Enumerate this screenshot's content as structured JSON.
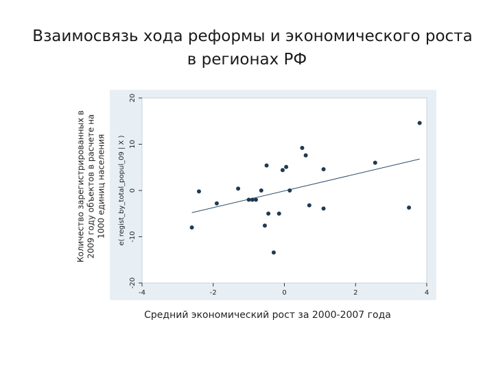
{
  "slide": {
    "title_line1": "Взаимосвязь хода реформы и экономического роста",
    "title_line2": "в регионах РФ",
    "ylabel_lines": [
      "Количество зарегистрированных в",
      "2009 году объектов в расчете на",
      "1000 единиц населения"
    ],
    "xlabel": "Средний экономический рост за 2000-2007 года"
  },
  "chart_data": {
    "type": "scatter",
    "title": "",
    "xlabel": "",
    "ylabel": "e( regist_by_total_popul_09 | X )",
    "xlim": [
      -4,
      4
    ],
    "ylim": [
      -20,
      20
    ],
    "xticks": [
      -4,
      -2,
      0,
      2,
      4
    ],
    "yticks": [
      -20,
      -10,
      0,
      10,
      20
    ],
    "grid": false,
    "points": [
      {
        "x": -2.6,
        "y": -8.0
      },
      {
        "x": -2.4,
        "y": -0.2
      },
      {
        "x": -1.9,
        "y": -2.8
      },
      {
        "x": -1.3,
        "y": 0.4
      },
      {
        "x": -1.0,
        "y": -2.0
      },
      {
        "x": -0.9,
        "y": -2.0
      },
      {
        "x": -0.8,
        "y": -2.0
      },
      {
        "x": -0.65,
        "y": 0.0
      },
      {
        "x": -0.55,
        "y": -7.6
      },
      {
        "x": -0.5,
        "y": 5.4
      },
      {
        "x": -0.45,
        "y": -5.0
      },
      {
        "x": -0.3,
        "y": -13.4
      },
      {
        "x": -0.15,
        "y": -5.0
      },
      {
        "x": -0.05,
        "y": 4.4
      },
      {
        "x": 0.05,
        "y": 5.1
      },
      {
        "x": 0.15,
        "y": 0.0
      },
      {
        "x": 0.5,
        "y": 9.2
      },
      {
        "x": 0.6,
        "y": 7.6
      },
      {
        "x": 0.7,
        "y": -3.2
      },
      {
        "x": 1.1,
        "y": 4.6
      },
      {
        "x": 1.1,
        "y": -3.9
      },
      {
        "x": 2.55,
        "y": 6.0
      },
      {
        "x": 3.5,
        "y": -3.7
      },
      {
        "x": 3.8,
        "y": 14.6
      }
    ],
    "fit_line": {
      "x": [
        -2.6,
        3.8
      ],
      "y": [
        -4.8,
        6.8
      ]
    },
    "colors": {
      "marker": "#1f3a52",
      "line": "#2a4d6b",
      "plot_bg": "#ffffff",
      "frame_bg": "#e8eff4"
    }
  }
}
